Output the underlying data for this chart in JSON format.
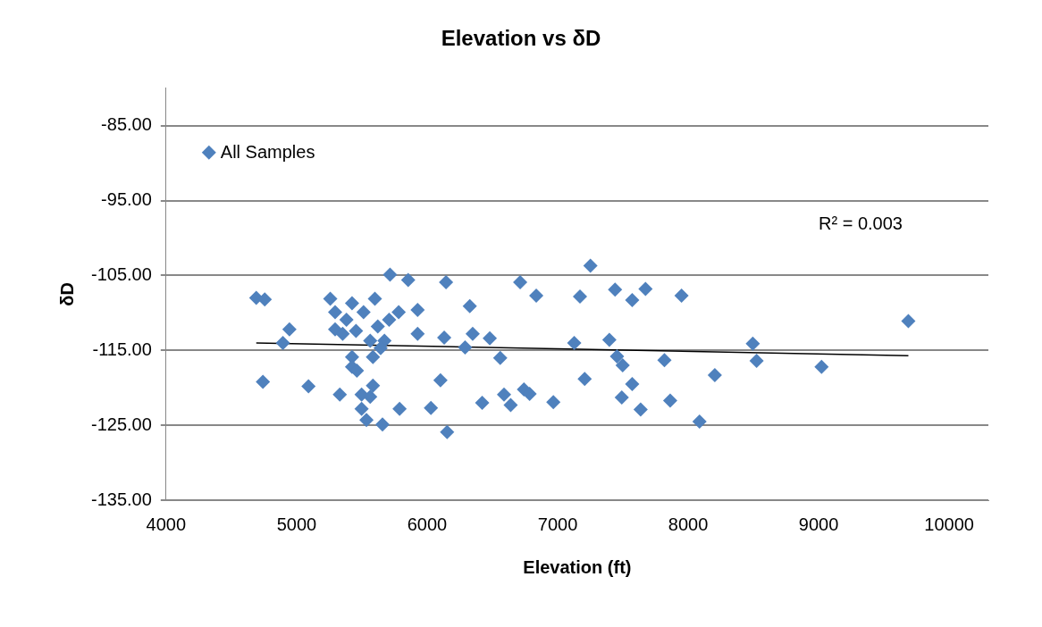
{
  "chart_data": {
    "type": "scatter",
    "title": "Elevation vs δD",
    "xlabel": "Elevation (ft)",
    "ylabel": "δD",
    "xlim": [
      4000,
      10300
    ],
    "xticks": [
      4000,
      5000,
      6000,
      7000,
      8000,
      9000,
      10000
    ],
    "ylim": [
      -135,
      -80
    ],
    "yticks": [
      {
        "value": -135,
        "label": "-135.00"
      },
      {
        "value": -125,
        "label": "-125.00"
      },
      {
        "value": -115,
        "label": "-115.00"
      },
      {
        "value": -105,
        "label": "-105.00"
      },
      {
        "value": -95,
        "label": "-95.00"
      },
      {
        "value": -85,
        "label": "-85.00"
      }
    ],
    "grid": "y",
    "legend": "top left",
    "marker": "diamond",
    "annotations": [
      "R² = 0.003"
    ],
    "series": [
      {
        "name": "All Samples",
        "color": "#4f81bd",
        "x": [
          4691,
          4756,
          4742,
          4945,
          4895,
          5091,
          5258,
          5331,
          5425,
          5295,
          5513,
          5600,
          5382,
          5295,
          5353,
          5455,
          5622,
          5709,
          5782,
          5927,
          5673,
          5564,
          5425,
          5425,
          5462,
          5585,
          5644,
          5585,
          5498,
          5564,
          5498,
          5535,
          5658,
          5789,
          5716,
          5855,
          6145,
          5927,
          6131,
          6291,
          6102,
          6029,
          6153,
          6327,
          7251,
          6713,
          6836,
          7171,
          7440,
          7571,
          7673,
          7949,
          6349,
          6480,
          6560,
          7127,
          7396,
          7455,
          7498,
          7818,
          8204,
          7207,
          7571,
          6422,
          6589,
          6640,
          6742,
          6785,
          6967,
          7491,
          7636,
          7862,
          8087,
          8495,
          8524,
          9022,
          9687
        ],
        "values": [
          -108.0,
          -108.2,
          -119.2,
          -112.2,
          -114.0,
          -119.8,
          -108.1,
          -120.9,
          -108.7,
          -109.9,
          -109.9,
          -108.1,
          -110.9,
          -112.2,
          -112.8,
          -112.4,
          -111.8,
          -110.9,
          -109.9,
          -109.6,
          -113.7,
          -113.7,
          -115.9,
          -117.2,
          -117.7,
          -115.9,
          -114.7,
          -119.7,
          -120.9,
          -121.2,
          -122.8,
          -124.3,
          -124.9,
          -122.8,
          -104.9,
          -105.6,
          -105.9,
          -112.8,
          -113.3,
          -114.6,
          -119.0,
          -122.7,
          -125.9,
          -109.1,
          -103.7,
          -105.9,
          -107.7,
          -107.8,
          -106.9,
          -108.3,
          -106.8,
          -107.7,
          -112.8,
          -113.4,
          -116.0,
          -114.0,
          -113.6,
          -115.8,
          -117.0,
          -116.3,
          -118.3,
          -118.8,
          -119.5,
          -122.0,
          -120.9,
          -122.3,
          -120.2,
          -120.8,
          -121.9,
          -121.3,
          -122.9,
          -121.7,
          -124.5,
          -114.1,
          -116.4,
          -117.2,
          -111.1
        ]
      },
      {
        "type": "line",
        "color": "#000000",
        "x": [
          4691,
          9687
        ],
        "values": [
          -114.0,
          -115.7
        ],
        "marker": "none"
      }
    ]
  }
}
